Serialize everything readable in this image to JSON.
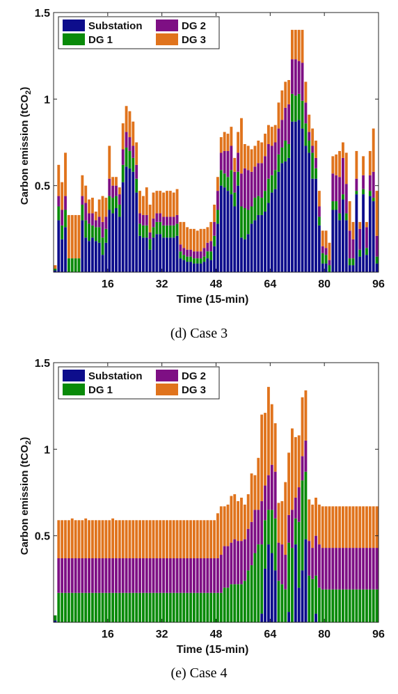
{
  "chart_data": [
    {
      "type": "bar",
      "stacked": true,
      "caption": "(d)  Case  3",
      "xlabel": "Time (15-min)",
      "ylabel": "Carbon emission (tCO₂)",
      "xlim": [
        0,
        96
      ],
      "ylim": [
        0,
        1.5
      ],
      "xticks": [
        16,
        32,
        48,
        64,
        80,
        96
      ],
      "yticks": [
        0.5,
        1,
        1.5
      ],
      "legend_position": "top-left",
      "grid": false,
      "series": [
        {
          "name": "Substation",
          "color": "#0d0d8c",
          "values": [
            0.01,
            0.3,
            0.19,
            0.26,
            0.0,
            0.0,
            0.0,
            0.0,
            0.3,
            0.2,
            0.18,
            0.2,
            0.18,
            0.17,
            0.1,
            0.17,
            0.36,
            0.34,
            0.37,
            0.32,
            0.52,
            0.61,
            0.6,
            0.58,
            0.46,
            0.21,
            0.2,
            0.2,
            0.13,
            0.2,
            0.22,
            0.22,
            0.2,
            0.2,
            0.2,
            0.2,
            0.21,
            0.08,
            0.07,
            0.06,
            0.06,
            0.05,
            0.05,
            0.05,
            0.06,
            0.08,
            0.07,
            0.15,
            0.28,
            0.5,
            0.49,
            0.47,
            0.45,
            0.38,
            0.5,
            0.2,
            0.19,
            0.22,
            0.28,
            0.3,
            0.33,
            0.33,
            0.35,
            0.4,
            0.46,
            0.48,
            0.58,
            0.63,
            0.64,
            0.66,
            0.87,
            0.87,
            0.88,
            0.83,
            0.73,
            0.69,
            0.54,
            0.54,
            0.27,
            0.05,
            0.05,
            0.0,
            0.36,
            0.36,
            0.3,
            0.42,
            0.3,
            0.04,
            0.04,
            0.45,
            0.09,
            0.45,
            0.1,
            0.44,
            0.41,
            0.05
          ]
        },
        {
          "name": "DG 1",
          "color": "#098a09",
          "values": [
            0.01,
            0.08,
            0.08,
            0.1,
            0.08,
            0.08,
            0.08,
            0.08,
            0.09,
            0.1,
            0.1,
            0.07,
            0.08,
            0.09,
            0.1,
            0.08,
            0.08,
            0.09,
            0.07,
            0.07,
            0.1,
            0.11,
            0.1,
            0.08,
            0.08,
            0.07,
            0.07,
            0.07,
            0.06,
            0.06,
            0.07,
            0.07,
            0.07,
            0.07,
            0.07,
            0.07,
            0.07,
            0.04,
            0.03,
            0.03,
            0.03,
            0.03,
            0.03,
            0.03,
            0.03,
            0.04,
            0.05,
            0.06,
            0.08,
            0.09,
            0.08,
            0.08,
            0.14,
            0.08,
            0.08,
            0.18,
            0.18,
            0.14,
            0.1,
            0.13,
            0.11,
            0.1,
            0.12,
            0.14,
            0.1,
            0.11,
            0.1,
            0.09,
            0.12,
            0.08,
            0.16,
            0.15,
            0.15,
            0.16,
            0.13,
            0.07,
            0.15,
            0.06,
            0.05,
            0.06,
            0.05,
            0.04,
            0.05,
            0.05,
            0.04,
            0.03,
            0.04,
            0.04,
            0.04,
            0.02,
            0.04,
            0.03,
            0.04,
            0.03,
            0.02,
            0.04
          ]
        },
        {
          "name": "DG 2",
          "color": "#7e0f84",
          "values": [
            0.0,
            0.06,
            0.09,
            0.08,
            0.0,
            0.0,
            0.0,
            0.0,
            0.05,
            0.1,
            0.06,
            0.07,
            0.04,
            0.06,
            0.09,
            0.07,
            0.1,
            0.07,
            0.06,
            0.06,
            0.09,
            0.09,
            0.08,
            0.07,
            0.08,
            0.06,
            0.06,
            0.06,
            0.04,
            0.05,
            0.05,
            0.05,
            0.05,
            0.05,
            0.05,
            0.05,
            0.05,
            0.04,
            0.04,
            0.04,
            0.04,
            0.04,
            0.04,
            0.04,
            0.05,
            0.05,
            0.06,
            0.08,
            0.11,
            0.1,
            0.13,
            0.15,
            0.14,
            0.12,
            0.11,
            0.19,
            0.23,
            0.23,
            0.2,
            0.18,
            0.19,
            0.2,
            0.2,
            0.2,
            0.17,
            0.16,
            0.15,
            0.16,
            0.19,
            0.23,
            0.2,
            0.21,
            0.19,
            0.22,
            0.12,
            0.05,
            0.04,
            0.06,
            0.06,
            0.04,
            0.04,
            0.03,
            0.16,
            0.15,
            0.21,
            0.21,
            0.17,
            0.16,
            0.11,
            0.07,
            0.12,
            0.08,
            0.12,
            0.09,
            0.15,
            0.12
          ]
        },
        {
          "name": "DG 3",
          "color": "#e0731c",
          "values": [
            0.02,
            0.18,
            0.16,
            0.25,
            0.25,
            0.25,
            0.25,
            0.25,
            0.12,
            0.1,
            0.08,
            0.09,
            0.05,
            0.1,
            0.15,
            0.11,
            0.19,
            0.05,
            0.05,
            0.04,
            0.15,
            0.15,
            0.15,
            0.14,
            0.13,
            0.13,
            0.11,
            0.16,
            0.16,
            0.15,
            0.13,
            0.13,
            0.14,
            0.15,
            0.15,
            0.14,
            0.15,
            0.13,
            0.15,
            0.13,
            0.12,
            0.13,
            0.12,
            0.13,
            0.11,
            0.09,
            0.11,
            0.1,
            0.08,
            0.09,
            0.11,
            0.1,
            0.11,
            0.08,
            0.12,
            0.32,
            0.14,
            0.14,
            0.13,
            0.12,
            0.13,
            0.12,
            0.13,
            0.11,
            0.11,
            0.1,
            0.15,
            0.17,
            0.15,
            0.14,
            0.17,
            0.17,
            0.18,
            0.19,
            0.12,
            0.1,
            0.1,
            0.1,
            0.09,
            0.09,
            0.1,
            0.1,
            0.1,
            0.12,
            0.15,
            0.09,
            0.18,
            0.17,
            0.1,
            0.16,
            0.04,
            0.11,
            0.03,
            0.14,
            0.25,
            0.26
          ]
        }
      ]
    },
    {
      "type": "bar",
      "stacked": true,
      "caption": "(e)  Case  4",
      "xlabel": "Time (15-min)",
      "ylabel": "Carbon emission (tCO₂)",
      "xlim": [
        0,
        96
      ],
      "ylim": [
        0,
        1.5
      ],
      "xticks": [
        16,
        32,
        48,
        64,
        80,
        96
      ],
      "yticks": [
        0.5,
        1,
        1.5
      ],
      "legend_position": "top-left",
      "grid": false,
      "series": [
        {
          "name": "Substation",
          "color": "#0d0d8c",
          "values": [
            0.01,
            0.0,
            0.0,
            0.0,
            0.0,
            0.0,
            0.0,
            0.0,
            0.0,
            0.0,
            0.0,
            0.0,
            0.0,
            0.0,
            0.0,
            0.0,
            0.0,
            0.0,
            0.0,
            0.0,
            0.0,
            0.0,
            0.0,
            0.0,
            0.0,
            0.0,
            0.0,
            0.0,
            0.0,
            0.0,
            0.0,
            0.0,
            0.0,
            0.0,
            0.0,
            0.0,
            0.0,
            0.0,
            0.0,
            0.0,
            0.0,
            0.0,
            0.0,
            0.0,
            0.0,
            0.0,
            0.0,
            0.0,
            0.0,
            0.0,
            0.0,
            0.0,
            0.0,
            0.0,
            0.0,
            0.0,
            0.0,
            0.0,
            0.0,
            0.0,
            0.0,
            0.05,
            0.31,
            0.45,
            0.4,
            0.3,
            0.0,
            0.0,
            0.0,
            0.06,
            0.0,
            0.45,
            0.2,
            0.3,
            0.48,
            0.0,
            0.0,
            0.05,
            0.0,
            0.0,
            0.0,
            0.0,
            0.0,
            0.0,
            0.0,
            0.0,
            0.0,
            0.0,
            0.0,
            0.0,
            0.0,
            0.0,
            0.0,
            0.0,
            0.0,
            0.0
          ]
        },
        {
          "name": "DG 1",
          "color": "#098a09",
          "values": [
            0.03,
            0.17,
            0.17,
            0.17,
            0.17,
            0.17,
            0.17,
            0.17,
            0.17,
            0.17,
            0.17,
            0.17,
            0.17,
            0.17,
            0.17,
            0.17,
            0.17,
            0.17,
            0.17,
            0.17,
            0.17,
            0.17,
            0.17,
            0.17,
            0.17,
            0.17,
            0.17,
            0.17,
            0.17,
            0.17,
            0.17,
            0.17,
            0.17,
            0.17,
            0.17,
            0.17,
            0.17,
            0.17,
            0.17,
            0.17,
            0.17,
            0.17,
            0.17,
            0.17,
            0.17,
            0.17,
            0.17,
            0.17,
            0.17,
            0.17,
            0.2,
            0.2,
            0.22,
            0.22,
            0.22,
            0.22,
            0.24,
            0.3,
            0.33,
            0.4,
            0.45,
            0.4,
            0.28,
            0.2,
            0.25,
            0.3,
            0.24,
            0.22,
            0.19,
            0.4,
            0.43,
            0.15,
            0.38,
            0.52,
            0.39,
            0.27,
            0.25,
            0.22,
            0.2,
            0.19,
            0.19,
            0.19,
            0.19,
            0.19,
            0.19,
            0.19,
            0.19,
            0.19,
            0.19,
            0.19,
            0.19,
            0.19,
            0.19,
            0.19,
            0.19,
            0.19
          ]
        },
        {
          "name": "DG 2",
          "color": "#7e0f84",
          "values": [
            0.0,
            0.2,
            0.2,
            0.2,
            0.2,
            0.2,
            0.2,
            0.2,
            0.2,
            0.2,
            0.2,
            0.2,
            0.2,
            0.2,
            0.2,
            0.2,
            0.2,
            0.2,
            0.2,
            0.2,
            0.2,
            0.2,
            0.2,
            0.2,
            0.2,
            0.2,
            0.2,
            0.2,
            0.2,
            0.2,
            0.2,
            0.2,
            0.2,
            0.2,
            0.2,
            0.2,
            0.2,
            0.2,
            0.2,
            0.2,
            0.2,
            0.2,
            0.2,
            0.2,
            0.2,
            0.2,
            0.2,
            0.2,
            0.2,
            0.22,
            0.24,
            0.24,
            0.24,
            0.26,
            0.25,
            0.25,
            0.24,
            0.24,
            0.25,
            0.25,
            0.2,
            0.25,
            0.2,
            0.2,
            0.26,
            0.27,
            0.22,
            0.23,
            0.2,
            0.16,
            0.22,
            0.12,
            0.2,
            0.14,
            0.18,
            0.2,
            0.18,
            0.23,
            0.25,
            0.24,
            0.24,
            0.24,
            0.24,
            0.24,
            0.24,
            0.24,
            0.24,
            0.24,
            0.24,
            0.24,
            0.24,
            0.24,
            0.24,
            0.24,
            0.24,
            0.24
          ]
        },
        {
          "name": "DG 3",
          "color": "#e0731c",
          "values": [
            0.0,
            0.22,
            0.22,
            0.22,
            0.22,
            0.23,
            0.22,
            0.22,
            0.22,
            0.23,
            0.22,
            0.22,
            0.22,
            0.22,
            0.22,
            0.22,
            0.22,
            0.23,
            0.22,
            0.22,
            0.22,
            0.22,
            0.22,
            0.22,
            0.22,
            0.22,
            0.22,
            0.22,
            0.22,
            0.22,
            0.22,
            0.22,
            0.22,
            0.22,
            0.22,
            0.22,
            0.22,
            0.22,
            0.22,
            0.22,
            0.22,
            0.22,
            0.22,
            0.22,
            0.22,
            0.22,
            0.22,
            0.22,
            0.26,
            0.28,
            0.23,
            0.24,
            0.27,
            0.26,
            0.23,
            0.25,
            0.2,
            0.2,
            0.28,
            0.2,
            0.3,
            0.5,
            0.42,
            0.51,
            0.35,
            0.28,
            0.23,
            0.25,
            0.42,
            0.36,
            0.47,
            0.35,
            0.3,
            0.34,
            0.29,
            0.24,
            0.25,
            0.22,
            0.23,
            0.24,
            0.24,
            0.24,
            0.24,
            0.24,
            0.24,
            0.24,
            0.24,
            0.24,
            0.24,
            0.24,
            0.24,
            0.24,
            0.24,
            0.24,
            0.24,
            0.24
          ]
        }
      ]
    }
  ]
}
